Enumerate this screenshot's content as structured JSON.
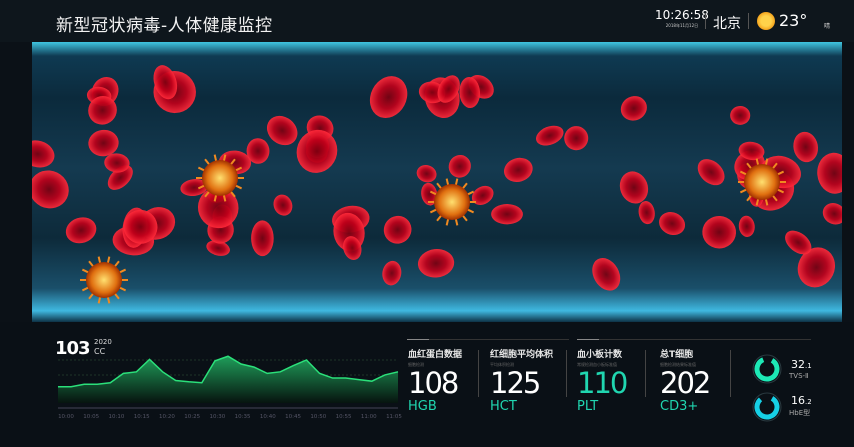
{
  "header": {
    "title": "新型冠状病毒-人体健康监控",
    "time": "10:26:58",
    "date": "2018年11月12日",
    "city": "北京",
    "temperature": "23°",
    "weather": "晴",
    "weather_icon": "sun-icon"
  },
  "summary": {
    "value": "103",
    "year": "2020",
    "unit": "CC"
  },
  "chart_data": {
    "type": "area",
    "x": [
      "10:00",
      "10:02.5",
      "10:05",
      "10:07.5",
      "10:10",
      "10:12.5",
      "10:15",
      "10:17.5",
      "10:20",
      "10:22.5",
      "10:25",
      "10:27.5",
      "10:30",
      "10:32.5",
      "10:35",
      "10:37.5",
      "10:40",
      "10:42.5",
      "10:45",
      "10:47.5",
      "10:50",
      "10:52.5",
      "10:55",
      "10:57.5",
      "11:00",
      "11:02.5",
      "11:05"
    ],
    "values": [
      52,
      52,
      60,
      60,
      65,
      95,
      100,
      140,
      100,
      72,
      68,
      65,
      135,
      150,
      125,
      115,
      95,
      100,
      120,
      138,
      95,
      80,
      80,
      75,
      70,
      90,
      100
    ],
    "tick_labels": [
      "10:00",
      "10:05",
      "10:10",
      "10:15",
      "10:20",
      "10:25",
      "10:30",
      "10:35",
      "10:40",
      "10:45",
      "10:50",
      "10:55",
      "11:00",
      "11:05"
    ],
    "ylim": [
      0,
      170
    ],
    "grid": true,
    "color": "#2be07a"
  },
  "stats": [
    {
      "label": "血红蛋白数据",
      "sub": "细胞检测",
      "value": "108",
      "code": "HGB",
      "color": "#ffffff"
    },
    {
      "label": "红细胞平均体积",
      "sub": "平均体积检测",
      "value": "125",
      "code": "HCT",
      "color": "#ffffff"
    },
    {
      "label": "血小板计数",
      "sub": "常规检测血小板标准值",
      "value": "110",
      "code": "PLT",
      "color": "#20d6b0"
    },
    {
      "label": "总T细胞",
      "sub": "细胞检测结果标准值",
      "value": "202",
      "code": "CD3+",
      "color": "#ffffff"
    }
  ],
  "gauges": [
    {
      "value": "32",
      "decimal": ".1",
      "label": "TVS-Ⅱ",
      "fill": 0.85,
      "color": "#1de9b6"
    },
    {
      "value": "16",
      "decimal": ".2",
      "label": "HbE型",
      "fill": 0.8,
      "color": "#16d0e6"
    }
  ]
}
